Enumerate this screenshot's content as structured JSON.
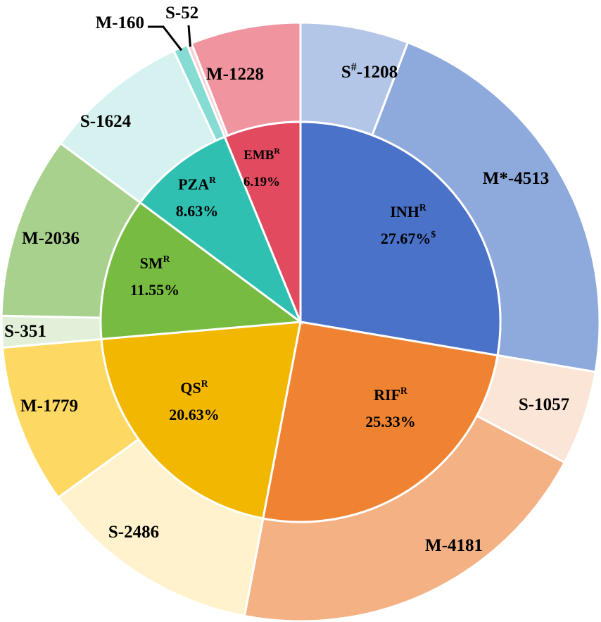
{
  "chart_data": {
    "type": "pie",
    "title": "",
    "inner": [
      {
        "name": "INH",
        "sup": "R",
        "label": "27.67%",
        "label_sup": "$",
        "value": 27.67,
        "color": "#4a72c9"
      },
      {
        "name": "RIF",
        "sup": "R",
        "label": "25.33%",
        "label_sup": "",
        "value": 25.33,
        "color": "#ef8332"
      },
      {
        "name": "QS",
        "sup": "R",
        "label": "20.63%",
        "label_sup": "",
        "value": 20.63,
        "color": "#f2b700"
      },
      {
        "name": "SM",
        "sup": "R",
        "label": "11.55%",
        "label_sup": "",
        "value": 11.55,
        "color": "#77bb41"
      },
      {
        "name": "PZA",
        "sup": "R",
        "label": "8.63%",
        "label_sup": "",
        "value": 8.63,
        "color": "#2fc0b2"
      },
      {
        "name": "EMB",
        "sup": "R",
        "label": "6.19%",
        "label_sup": "",
        "value": 6.19,
        "color": "#e24a5f"
      }
    ],
    "outer": [
      {
        "group": "INH",
        "prefix": "S",
        "mark": "#",
        "count": "1208",
        "value": 1208,
        "color": "#b4c6e7"
      },
      {
        "group": "INH",
        "prefix": "M",
        "mark": "*",
        "count": "4513",
        "value": 4513,
        "color": "#8eaadc"
      },
      {
        "group": "RIF",
        "prefix": "S",
        "mark": "",
        "count": "1057",
        "value": 1057,
        "color": "#fbe5d6"
      },
      {
        "group": "RIF",
        "prefix": "M",
        "mark": "",
        "count": "4181",
        "value": 4181,
        "color": "#f4b183"
      },
      {
        "group": "QS",
        "prefix": "S",
        "mark": "",
        "count": "2486",
        "value": 2486,
        "color": "#fff2cc"
      },
      {
        "group": "QS",
        "prefix": "M",
        "mark": "",
        "count": "1779",
        "value": 1779,
        "color": "#fdd964"
      },
      {
        "group": "SM",
        "prefix": "S",
        "mark": "",
        "count": "351",
        "value": 351,
        "color": "#e2f0d9"
      },
      {
        "group": "SM",
        "prefix": "M",
        "mark": "",
        "count": "2036",
        "value": 2036,
        "color": "#a9d18e"
      },
      {
        "group": "PZA",
        "prefix": "S",
        "mark": "",
        "count": "1624",
        "value": 1624,
        "color": "#d5f2f0"
      },
      {
        "group": "PZA",
        "prefix": "M",
        "mark": "",
        "count": "160",
        "value": 160,
        "color": "#86dcd2"
      },
      {
        "group": "EMB",
        "prefix": "S",
        "mark": "",
        "count": "52",
        "value": 52,
        "color": "#f9d0d6"
      },
      {
        "group": "EMB",
        "prefix": "M",
        "mark": "",
        "count": "1228",
        "value": 1228,
        "color": "#f0949f"
      }
    ]
  }
}
